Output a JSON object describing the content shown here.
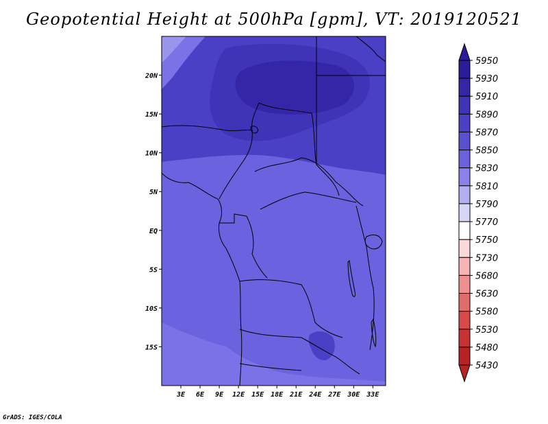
{
  "title": "Geopotential Height at 500hPa [gpm], VT: 2019120521",
  "credit": "GrADS: IGES/COLA",
  "map": {
    "lon_range": [
      0,
      35
    ],
    "lat_range": [
      -20,
      25
    ],
    "x_ticks": [
      "3E",
      "6E",
      "9E",
      "12E",
      "15E",
      "18E",
      "21E",
      "24E",
      "27E",
      "30E",
      "33E"
    ],
    "x_tick_values": [
      3,
      6,
      9,
      12,
      15,
      18,
      21,
      24,
      27,
      30,
      33
    ],
    "y_ticks": [
      "20N",
      "15N",
      "10N",
      "5N",
      "EQ",
      "5S",
      "10S",
      "15S"
    ],
    "y_tick_values": [
      20,
      15,
      10,
      5,
      0,
      -5,
      -10,
      -15
    ]
  },
  "colorbar": {
    "levels": [
      "5950",
      "5930",
      "5910",
      "5890",
      "5870",
      "5850",
      "5830",
      "5810",
      "5790",
      "5770",
      "5750",
      "5730",
      "5680",
      "5630",
      "5580",
      "5530",
      "5480",
      "5430"
    ],
    "colors": [
      "#2a1c9a",
      "#3526a8",
      "#3f33b8",
      "#4a40c6",
      "#5a50d2",
      "#6a62de",
      "#8a82ea",
      "#b2aef2",
      "#d8d6f8",
      "#ffffff",
      "#fcd8d8",
      "#f6b4b4",
      "#ee9090",
      "#e06c6c",
      "#d84a4a",
      "#c83232",
      "#b82222"
    ]
  }
}
